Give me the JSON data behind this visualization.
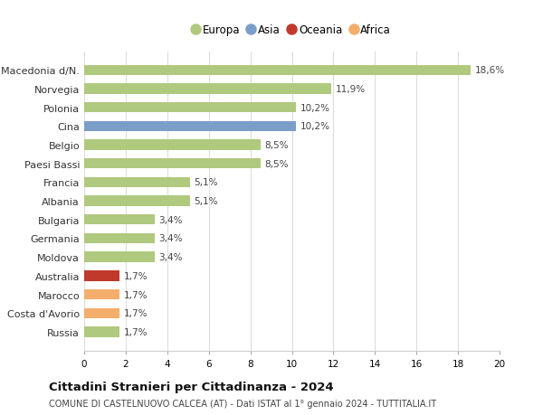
{
  "categories": [
    "Russia",
    "Costa d'Avorio",
    "Marocco",
    "Australia",
    "Moldova",
    "Germania",
    "Bulgaria",
    "Albania",
    "Francia",
    "Paesi Bassi",
    "Belgio",
    "Cina",
    "Polonia",
    "Norvegia",
    "Macedonia d/N."
  ],
  "values": [
    1.7,
    1.7,
    1.7,
    1.7,
    3.4,
    3.4,
    3.4,
    5.1,
    5.1,
    8.5,
    8.5,
    10.2,
    10.2,
    11.9,
    18.6
  ],
  "labels": [
    "1,7%",
    "1,7%",
    "1,7%",
    "1,7%",
    "3,4%",
    "3,4%",
    "3,4%",
    "5,1%",
    "5,1%",
    "8,5%",
    "8,5%",
    "10,2%",
    "10,2%",
    "11,9%",
    "18,6%"
  ],
  "bar_colors": [
    "#afc97e",
    "#f4ae6b",
    "#f4ae6b",
    "#c0392b",
    "#afc97e",
    "#afc97e",
    "#afc97e",
    "#afc97e",
    "#afc97e",
    "#afc97e",
    "#afc97e",
    "#7b9ec8",
    "#afc97e",
    "#afc97e",
    "#afc97e"
  ],
  "legend_labels": [
    "Europa",
    "Asia",
    "Oceania",
    "Africa"
  ],
  "legend_colors": [
    "#afc97e",
    "#7b9ec8",
    "#c0392b",
    "#f4ae6b"
  ],
  "title": "Cittadini Stranieri per Cittadinanza - 2024",
  "subtitle": "COMUNE DI CASTELNUOVO CALCEA (AT) - Dati ISTAT al 1° gennaio 2024 - TUTTITALIA.IT",
  "xlim": [
    0,
    20
  ],
  "xticks": [
    0,
    2,
    4,
    6,
    8,
    10,
    12,
    14,
    16,
    18,
    20
  ],
  "bg_color": "#ffffff",
  "grid_color": "#dddddd",
  "bar_height": 0.55
}
